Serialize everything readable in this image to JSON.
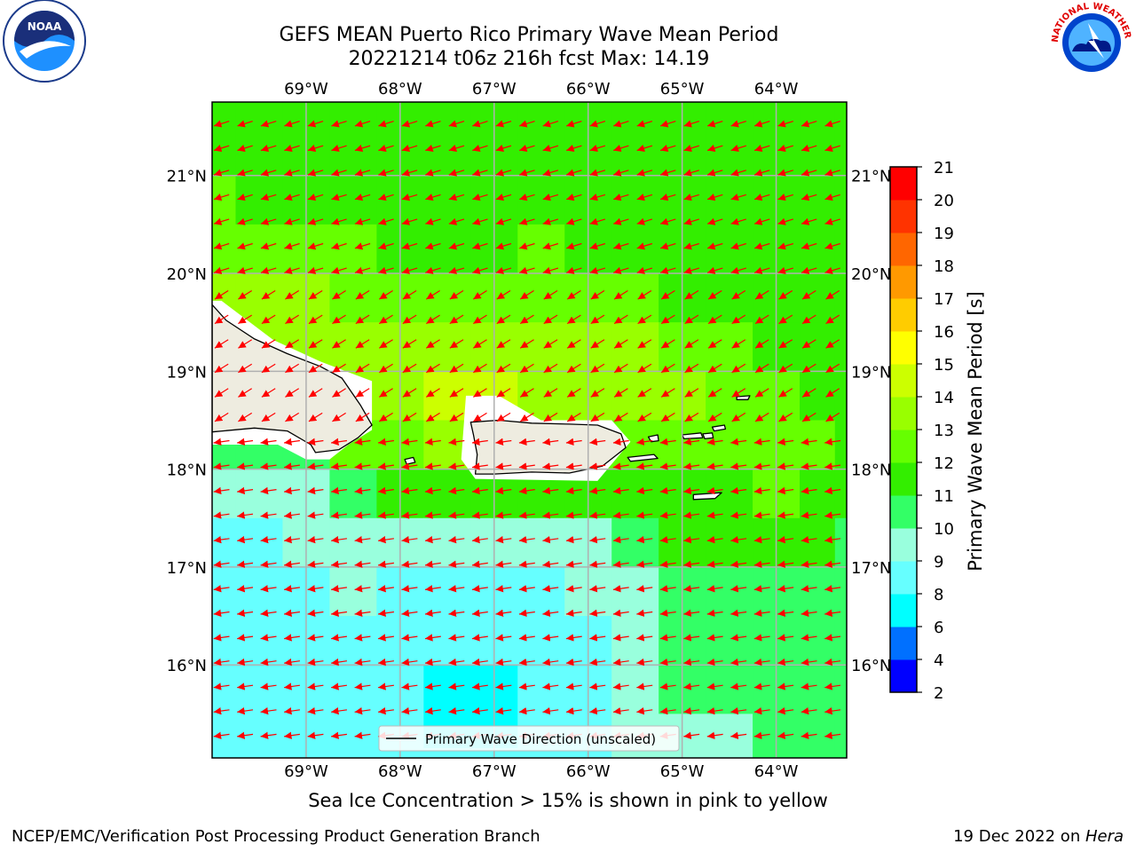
{
  "header": {
    "title_line1": "GEFS MEAN Puerto Rico Primary Wave Mean Period",
    "title_line2": "20221214 t06z 216h fcst   Max: 14.19"
  },
  "logos": {
    "left": "NOAA",
    "right": "NATIONAL WEATHER SERVICE"
  },
  "note": "Sea Ice Concentration > 15% is shown in pink to yellow",
  "footer": {
    "credit": "NCEP/EMC/Verification Post Processing Product Generation Branch",
    "date_prefix": "19 Dec 2022 on ",
    "date_machine": "Hera"
  },
  "chart_data": {
    "type": "heatmap",
    "map_extent": {
      "lon": [
        -70.0,
        -63.25
      ],
      "lat": [
        15.05,
        21.75
      ]
    },
    "x_ticks": [
      {
        "value": -69,
        "label": "69°W"
      },
      {
        "value": -68,
        "label": "68°W"
      },
      {
        "value": -67,
        "label": "67°W"
      },
      {
        "value": -66,
        "label": "66°W"
      },
      {
        "value": -65,
        "label": "65°W"
      },
      {
        "value": -64,
        "label": "64°W"
      }
    ],
    "y_ticks": [
      {
        "value": 21,
        "label": "21°N"
      },
      {
        "value": 20,
        "label": "20°N"
      },
      {
        "value": 19,
        "label": "19°N"
      },
      {
        "value": 18,
        "label": "18°N"
      },
      {
        "value": 17,
        "label": "17°N"
      },
      {
        "value": 16,
        "label": "16°N"
      }
    ],
    "grid": true,
    "legend": {
      "label": "Primary Wave Direction (unscaled)",
      "placement": "lower-center"
    },
    "arrow_color": "#ff0000",
    "colorbar": {
      "label": "Primary Wave Mean Period [s]",
      "boundaries": [
        2,
        4,
        6,
        8,
        9,
        10,
        11,
        12,
        13,
        14,
        15,
        16,
        17,
        18,
        19,
        20,
        21
      ],
      "colors": [
        "#0000ff",
        "#0070ff",
        "#00ffff",
        "#66ffff",
        "#99ffdd",
        "#33ff66",
        "#33ee00",
        "#66ff00",
        "#99ff00",
        "#ccff00",
        "#ffff00",
        "#ffcc00",
        "#ff9900",
        "#ff6600",
        "#ff3300",
        "#ff0000"
      ],
      "ticks": [
        2,
        4,
        6,
        8,
        9,
        10,
        11,
        12,
        13,
        14,
        15,
        16,
        17,
        18,
        19,
        20,
        21
      ]
    },
    "period_field": {
      "lons": [
        -70.0,
        -69.5,
        -69.0,
        -68.5,
        -68.0,
        -67.5,
        -67.0,
        -66.5,
        -66.0,
        -65.5,
        -65.0,
        -64.5,
        -64.0,
        -63.5,
        -63.25
      ],
      "lats": [
        21.75,
        21.25,
        20.75,
        20.25,
        19.75,
        19.25,
        18.75,
        18.25,
        17.75,
        17.25,
        16.75,
        16.25,
        15.75,
        15.25,
        15.05
      ],
      "values": [
        [
          11.6,
          11.5,
          11.5,
          11.4,
          11.0,
          11.4,
          11.5,
          11.6,
          11.7,
          11.8,
          11.8,
          11.8,
          11.7,
          11.6,
          11.6
        ],
        [
          11.5,
          11.4,
          11.3,
          11.2,
          11.4,
          11.4,
          11.5,
          11.6,
          11.7,
          11.7,
          11.7,
          11.7,
          11.6,
          11.6,
          11.5
        ],
        [
          12.3,
          11.8,
          11.6,
          11.5,
          11.5,
          11.6,
          11.6,
          11.7,
          11.7,
          11.7,
          11.7,
          11.6,
          11.5,
          11.4,
          11.4
        ],
        [
          12.8,
          12.6,
          12.3,
          12.0,
          11.9,
          11.8,
          11.9,
          12.1,
          11.9,
          11.8,
          11.6,
          11.5,
          11.3,
          11.3,
          11.3
        ],
        [
          13.3,
          13.2,
          13.0,
          12.8,
          12.5,
          12.3,
          12.6,
          12.8,
          12.6,
          12.3,
          11.9,
          11.7,
          11.5,
          11.3,
          11.3
        ],
        [
          13.4,
          13.6,
          13.5,
          13.3,
          13.2,
          13.6,
          13.9,
          13.9,
          13.4,
          13.0,
          12.6,
          12.2,
          11.8,
          11.5,
          11.4
        ],
        [
          13.0,
          13.2,
          13.5,
          13.4,
          13.9,
          14.1,
          14.0,
          13.9,
          13.8,
          13.6,
          13.2,
          12.8,
          12.4,
          11.8,
          11.6
        ],
        [
          10.2,
          10.3,
          10.5,
          12.2,
          12.8,
          13.4,
          13.4,
          13.2,
          12.9,
          12.5,
          12.4,
          12.6,
          12.6,
          12.0,
          11.6
        ],
        [
          9.3,
          9.3,
          9.2,
          10.6,
          11.8,
          11.9,
          11.8,
          11.6,
          11.3,
          11.2,
          11.5,
          11.8,
          12.0,
          11.8,
          11.5
        ],
        [
          8.4,
          8.7,
          9.2,
          9.4,
          9.3,
          9.2,
          9.2,
          9.3,
          9.5,
          10.4,
          11.0,
          11.1,
          11.2,
          11.0,
          10.9
        ],
        [
          8.3,
          8.5,
          8.8,
          9.0,
          8.9,
          8.8,
          8.8,
          8.9,
          9.1,
          9.7,
          10.5,
          10.7,
          10.8,
          10.6,
          10.5
        ],
        [
          8.2,
          8.4,
          8.6,
          8.8,
          8.6,
          8.4,
          8.4,
          8.6,
          8.9,
          9.3,
          10.1,
          10.4,
          10.6,
          10.6,
          10.5
        ],
        [
          8.1,
          8.2,
          8.4,
          8.6,
          8.3,
          7.9,
          7.9,
          8.3,
          8.7,
          9.0,
          10.0,
          10.3,
          10.7,
          10.9,
          10.8
        ],
        [
          8.5,
          8.4,
          8.2,
          8.1,
          8.0,
          7.9,
          7.9,
          8.1,
          8.6,
          9.1,
          9.6,
          9.8,
          10.2,
          10.5,
          10.4
        ],
        [
          8.6,
          8.5,
          8.3,
          8.2,
          8.1,
          8.0,
          8.0,
          8.2,
          8.7,
          9.2,
          9.5,
          9.7,
          10.0,
          10.3,
          10.3
        ]
      ]
    },
    "direction_field": {
      "lon_start": -69.9,
      "lon_step": 0.25,
      "lon_count": 27,
      "lat_start": 15.28,
      "lat_step": 0.25,
      "lat_count": 26,
      "north_of_lat": 20.0,
      "north_direction_deg": 253,
      "mid_north_of_lat": 18.5,
      "mid_direction_deg": 238,
      "south_direction_deg": 262
    },
    "land": [
      {
        "name": "Hispaniola",
        "color": "#eeece0",
        "lonlat": [
          [
            -70.0,
            19.68
          ],
          [
            -69.85,
            19.52
          ],
          [
            -69.55,
            19.33
          ],
          [
            -69.2,
            19.18
          ],
          [
            -68.85,
            19.05
          ],
          [
            -68.62,
            18.93
          ],
          [
            -68.42,
            18.65
          ],
          [
            -68.3,
            18.45
          ],
          [
            -68.45,
            18.32
          ],
          [
            -68.65,
            18.2
          ],
          [
            -68.9,
            18.17
          ],
          [
            -68.95,
            18.25
          ],
          [
            -69.2,
            18.39
          ],
          [
            -69.55,
            18.42
          ],
          [
            -70.0,
            18.38
          ]
        ]
      },
      {
        "name": "Puerto Rico",
        "color": "#eeece0",
        "lonlat": [
          [
            -67.25,
            18.48
          ],
          [
            -66.95,
            18.5
          ],
          [
            -66.6,
            18.47
          ],
          [
            -66.2,
            18.46
          ],
          [
            -65.9,
            18.45
          ],
          [
            -65.65,
            18.36
          ],
          [
            -65.6,
            18.22
          ],
          [
            -65.85,
            18.03
          ],
          [
            -66.2,
            17.96
          ],
          [
            -66.6,
            17.97
          ],
          [
            -67.0,
            17.95
          ],
          [
            -67.2,
            17.95
          ],
          [
            -67.18,
            18.15
          ],
          [
            -67.22,
            18.35
          ]
        ]
      },
      {
        "name": "Vieques",
        "color": "#ffffff",
        "lonlat": [
          [
            -65.58,
            18.12
          ],
          [
            -65.3,
            18.15
          ],
          [
            -65.26,
            18.11
          ],
          [
            -65.55,
            18.08
          ]
        ]
      },
      {
        "name": "St. Croix",
        "color": "#ffffff",
        "lonlat": [
          [
            -64.88,
            17.74
          ],
          [
            -64.58,
            17.76
          ],
          [
            -64.65,
            17.7
          ],
          [
            -64.88,
            17.69
          ]
        ]
      },
      {
        "name": "St. Thomas",
        "color": "#ffffff",
        "lonlat": [
          [
            -65.0,
            18.35
          ],
          [
            -64.8,
            18.37
          ],
          [
            -64.78,
            18.32
          ],
          [
            -64.98,
            18.31
          ]
        ]
      },
      {
        "name": "St. John",
        "color": "#ffffff",
        "lonlat": [
          [
            -64.78,
            18.36
          ],
          [
            -64.68,
            18.37
          ],
          [
            -64.67,
            18.32
          ],
          [
            -64.76,
            18.31
          ]
        ]
      },
      {
        "name": "Tortola",
        "color": "#ffffff",
        "lonlat": [
          [
            -64.68,
            18.43
          ],
          [
            -64.55,
            18.45
          ],
          [
            -64.54,
            18.41
          ],
          [
            -64.66,
            18.39
          ]
        ]
      },
      {
        "name": "Culebra",
        "color": "#ffffff",
        "lonlat": [
          [
            -65.36,
            18.33
          ],
          [
            -65.26,
            18.35
          ],
          [
            -65.25,
            18.29
          ],
          [
            -65.33,
            18.28
          ]
        ]
      },
      {
        "name": "Mona",
        "color": "#ffffff",
        "lonlat": [
          [
            -67.95,
            18.1
          ],
          [
            -67.86,
            18.12
          ],
          [
            -67.84,
            18.07
          ],
          [
            -67.93,
            18.05
          ]
        ]
      },
      {
        "name": "Anegada",
        "color": "#ffffff",
        "lonlat": [
          [
            -64.42,
            18.74
          ],
          [
            -64.28,
            18.75
          ],
          [
            -64.3,
            18.71
          ],
          [
            -64.42,
            18.71
          ]
        ]
      }
    ],
    "white_mask_regions": [
      [
        [
          -70.0,
          19.72
        ],
        [
          -69.9,
          19.72
        ],
        [
          -69.35,
          19.32
        ],
        [
          -68.85,
          19.1
        ],
        [
          -68.3,
          18.9
        ],
        [
          -68.3,
          18.4
        ],
        [
          -68.55,
          18.25
        ],
        [
          -68.75,
          18.1
        ],
        [
          -69.0,
          18.1
        ],
        [
          -69.3,
          18.25
        ],
        [
          -70.0,
          18.25
        ]
      ],
      [
        [
          -67.3,
          18.75
        ],
        [
          -66.95,
          18.75
        ],
        [
          -66.5,
          18.5
        ],
        [
          -65.75,
          18.5
        ],
        [
          -65.55,
          18.28
        ],
        [
          -65.9,
          17.88
        ],
        [
          -67.2,
          17.9
        ],
        [
          -67.35,
          18.1
        ]
      ]
    ]
  }
}
